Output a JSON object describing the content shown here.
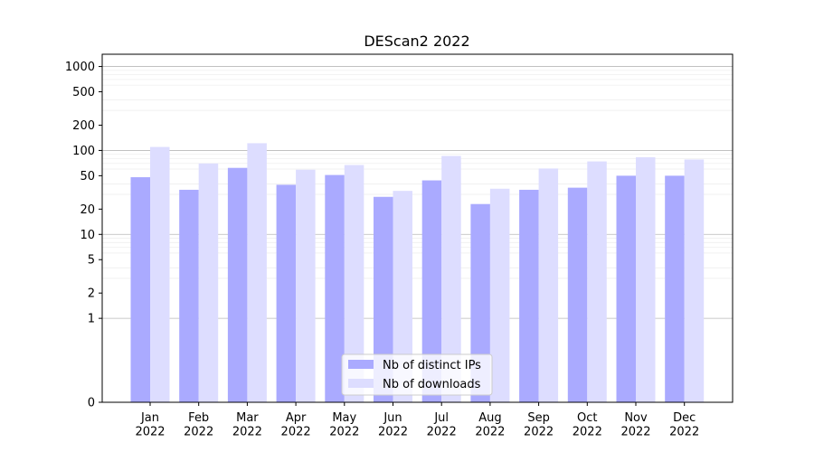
{
  "chart_data": {
    "type": "bar",
    "title": "DEScan2 2022",
    "xlabel": "",
    "ylabel": "",
    "yscale": "symlog",
    "ylim": [
      0,
      1400
    ],
    "y_ticks": [
      0,
      1,
      2,
      5,
      10,
      20,
      50,
      100,
      200,
      500,
      1000
    ],
    "categories": [
      "Jan\n2022",
      "Feb\n2022",
      "Mar\n2022",
      "Apr\n2022",
      "May\n2022",
      "Jun\n2022",
      "Jul\n2022",
      "Aug\n2022",
      "Sep\n2022",
      "Oct\n2022",
      "Nov\n2022",
      "Dec\n2022"
    ],
    "series": [
      {
        "name": "Nb of distinct IPs",
        "color": "#aaaaff",
        "values": [
          48,
          34,
          62,
          39,
          51,
          28,
          44,
          23,
          34,
          36,
          50,
          50
        ]
      },
      {
        "name": "Nb of downloads",
        "color": "#ddddff",
        "values": [
          110,
          70,
          122,
          59,
          67,
          33,
          86,
          35,
          61,
          74,
          83,
          78
        ]
      }
    ],
    "grid": true,
    "legend_position": "bottom-center"
  }
}
